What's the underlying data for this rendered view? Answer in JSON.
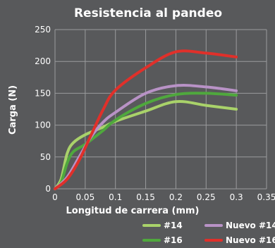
{
  "chart_data": {
    "type": "line",
    "title": "Resistencia al pandeo",
    "xlabel": "Longitud de carrera (mm)",
    "ylabel": "Carga (N)",
    "xlim": [
      0,
      0.35
    ],
    "ylim": [
      0,
      250
    ],
    "xticks": [
      "0",
      "0.05",
      "0.1",
      "0.15",
      "0.2",
      "0.25",
      "0.3",
      "0.35"
    ],
    "yticks": [
      "0",
      "50",
      "100",
      "150",
      "200",
      "250"
    ],
    "grid": true,
    "legend_position": "bottom-right",
    "series": [
      {
        "name": "#14",
        "color": "#a9d26a",
        "points": [
          [
            0,
            0
          ],
          [
            0.01,
            15
          ],
          [
            0.02,
            55
          ],
          [
            0.03,
            72
          ],
          [
            0.05,
            85
          ],
          [
            0.08,
            97
          ],
          [
            0.1,
            106
          ],
          [
            0.15,
            122
          ],
          [
            0.2,
            137
          ],
          [
            0.25,
            131
          ],
          [
            0.3,
            125
          ]
        ]
      },
      {
        "name": "#16",
        "color": "#4fa83d",
        "points": [
          [
            0,
            0
          ],
          [
            0.01,
            10
          ],
          [
            0.02,
            40
          ],
          [
            0.03,
            58
          ],
          [
            0.05,
            70
          ],
          [
            0.08,
            92
          ],
          [
            0.1,
            108
          ],
          [
            0.15,
            134
          ],
          [
            0.2,
            148
          ],
          [
            0.25,
            150
          ],
          [
            0.3,
            147
          ]
        ]
      },
      {
        "name": "Nuevo #14",
        "color": "#b892c6",
        "points": [
          [
            0,
            0
          ],
          [
            0.02,
            18
          ],
          [
            0.04,
            50
          ],
          [
            0.06,
            82
          ],
          [
            0.08,
            105
          ],
          [
            0.1,
            120
          ],
          [
            0.15,
            150
          ],
          [
            0.2,
            162
          ],
          [
            0.25,
            160
          ],
          [
            0.3,
            154
          ]
        ]
      },
      {
        "name": "Nuevo #16",
        "color": "#e0302a",
        "points": [
          [
            0,
            0
          ],
          [
            0.02,
            15
          ],
          [
            0.04,
            45
          ],
          [
            0.06,
            85
          ],
          [
            0.08,
            125
          ],
          [
            0.1,
            155
          ],
          [
            0.15,
            190
          ],
          [
            0.2,
            215
          ],
          [
            0.25,
            213
          ],
          [
            0.3,
            207
          ]
        ]
      }
    ]
  }
}
